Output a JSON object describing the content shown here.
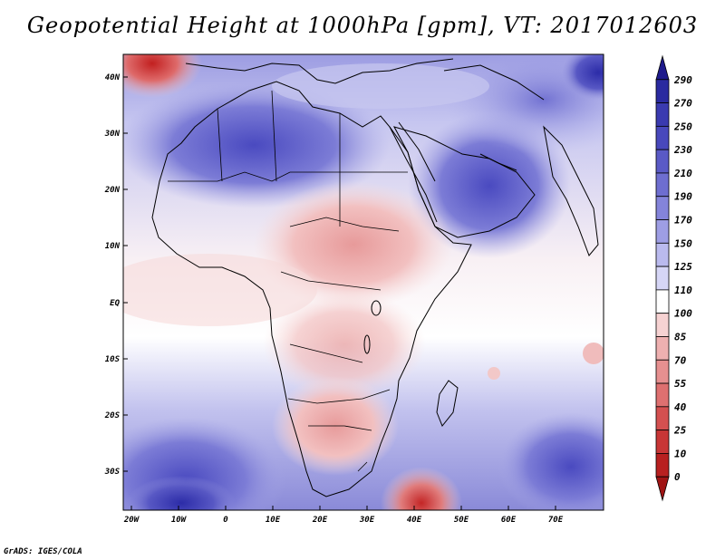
{
  "title": "Geopotential Height at 1000hPa [gpm], VT: 2017012603",
  "credit": "GrADS: IGES/COLA",
  "map": {
    "lon_labels": [
      "20W",
      "10W",
      "0",
      "10E",
      "20E",
      "30E",
      "40E",
      "50E",
      "60E",
      "70E"
    ],
    "lat_labels": [
      "40N",
      "30N",
      "20N",
      "10N",
      "EQ",
      "10S",
      "20S",
      "30S"
    ],
    "lon_range": [
      -22,
      80
    ],
    "lat_range": [
      -37,
      45
    ]
  },
  "colorbar": {
    "levels": [
      "290",
      "270",
      "250",
      "230",
      "210",
      "190",
      "170",
      "150",
      "125",
      "110",
      "100",
      "85",
      "70",
      "55",
      "40",
      "25",
      "10",
      "0"
    ],
    "colors": [
      "#1e1a8c",
      "#2a2aa0",
      "#3a3ab0",
      "#4848bc",
      "#5a5ac6",
      "#6e6ed0",
      "#8484da",
      "#9e9ee4",
      "#babaee",
      "#d6d6f6",
      "#ffffff",
      "#f6d2d2",
      "#eeb0b0",
      "#e69090",
      "#de7070",
      "#d45050",
      "#c83636",
      "#b82020",
      "#a01414"
    ]
  }
}
